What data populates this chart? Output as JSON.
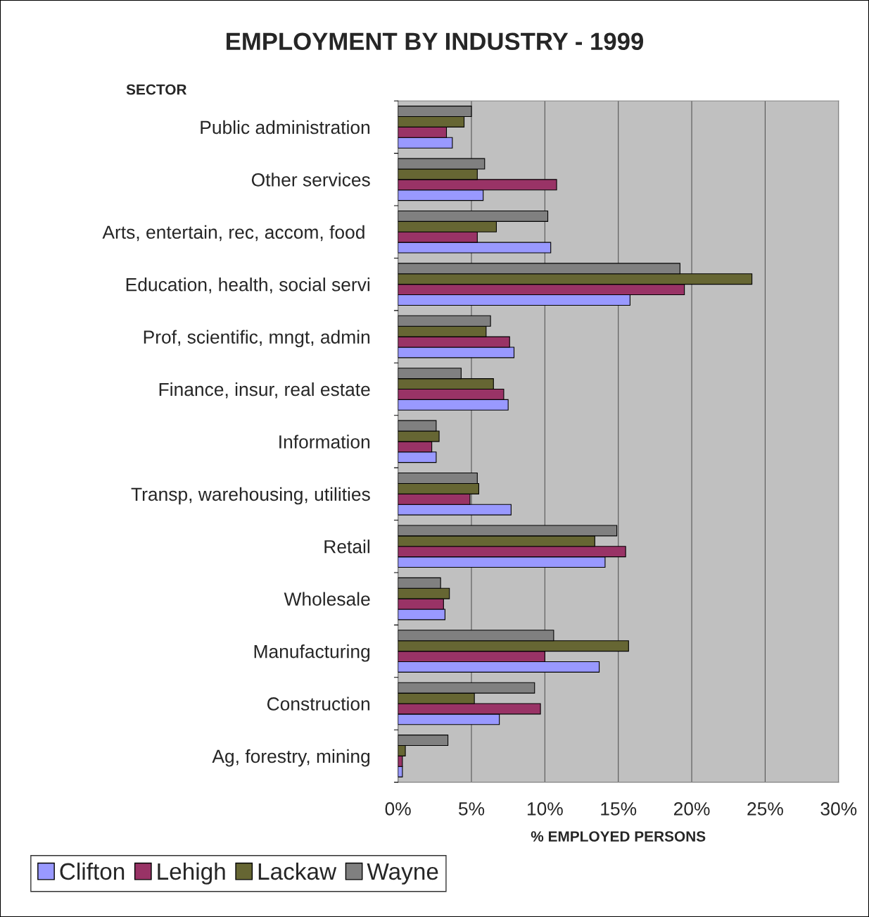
{
  "chart_data": {
    "type": "bar",
    "orientation": "horizontal",
    "title": "EMPLOYMENT BY INDUSTRY - 1999",
    "xlabel": "% EMPLOYED PERSONS",
    "ylabel": "SECTOR",
    "categories": [
      "Public administration",
      "Other services",
      "Arts, entertain, rec, accom, food ",
      "Education, health, social servi",
      "Prof, scientific, mngt, admin",
      "Finance, insur, real estate",
      "Information",
      "Transp, warehousing, utilities",
      "Retail",
      "Wholesale",
      "Manufacturing",
      "Construction",
      "Ag, forestry, mining"
    ],
    "series": [
      {
        "name": "Clifton",
        "color": "#9999ff",
        "values": [
          3.7,
          5.8,
          10.4,
          15.8,
          7.9,
          7.5,
          2.6,
          7.7,
          14.1,
          3.2,
          13.7,
          6.9,
          0.3
        ]
      },
      {
        "name": "Lehigh",
        "color": "#993366",
        "values": [
          3.3,
          10.8,
          5.4,
          19.5,
          7.6,
          7.2,
          2.3,
          4.9,
          15.5,
          3.1,
          10.0,
          9.7,
          0.3
        ]
      },
      {
        "name": "Lackaw",
        "color": "#666633",
        "values": [
          4.5,
          5.4,
          6.7,
          24.1,
          6.0,
          6.5,
          2.8,
          5.5,
          13.4,
          3.5,
          15.7,
          5.2,
          0.5
        ]
      },
      {
        "name": "Wayne",
        "color": "#808080",
        "values": [
          5.0,
          5.9,
          10.2,
          19.2,
          6.3,
          4.3,
          2.6,
          5.4,
          14.9,
          2.9,
          10.6,
          9.3,
          3.4
        ]
      }
    ],
    "xlim": [
      0,
      30
    ],
    "xticks": [
      {
        "value": 0,
        "label": "0%"
      },
      {
        "value": 5,
        "label": "5%"
      },
      {
        "value": 10,
        "label": "10%"
      },
      {
        "value": 15,
        "label": "15%"
      },
      {
        "value": 20,
        "label": "20%"
      },
      {
        "value": 25,
        "label": "25%"
      },
      {
        "value": 30,
        "label": "30%"
      }
    ],
    "grid": "x",
    "legend": "bottom left"
  }
}
